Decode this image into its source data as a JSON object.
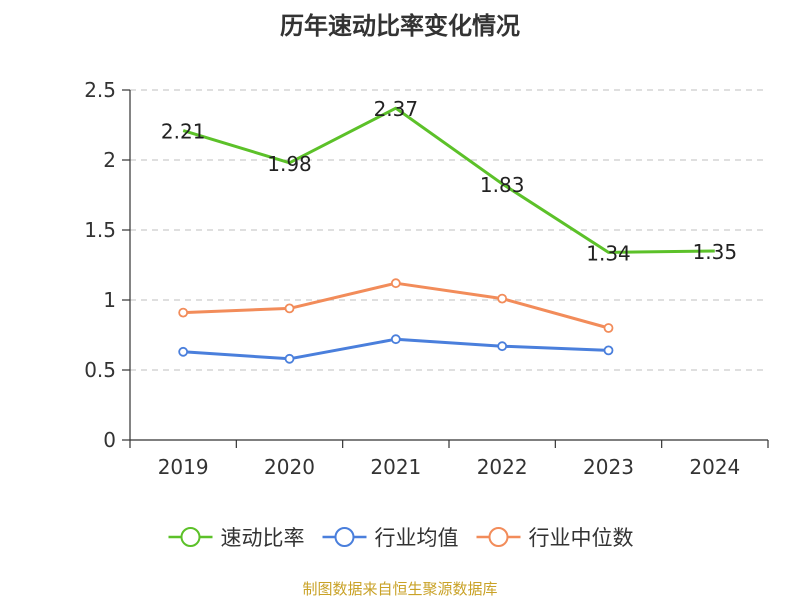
{
  "chart_data": {
    "type": "line",
    "title": "历年速动比率变化情况",
    "categories": [
      "2019",
      "2020",
      "2021",
      "2022",
      "2023",
      "2024"
    ],
    "ylim": [
      0,
      2.5
    ],
    "yticks": [
      "0",
      "0.5",
      "1",
      "1.5",
      "2",
      "2.5"
    ],
    "xlabel": "",
    "ylabel": "",
    "grid": true,
    "legend_position": "bottom",
    "series": [
      {
        "name": "速动比率",
        "color": "#5cc129",
        "values": [
          2.21,
          1.98,
          2.37,
          1.83,
          1.34,
          1.35
        ],
        "labels": [
          "2.21",
          "1.98",
          "2.37",
          "1.83",
          "1.34",
          "1.35"
        ]
      },
      {
        "name": "行业均值",
        "color": "#4a7fdc",
        "values": [
          0.63,
          0.58,
          0.72,
          0.67,
          0.64,
          null
        ]
      },
      {
        "name": "行业中位数",
        "color": "#f28c5a",
        "values": [
          0.91,
          0.94,
          1.12,
          1.01,
          0.8,
          null
        ]
      }
    ]
  },
  "footer": {
    "source": "制图数据来自恒生聚源数据库"
  }
}
